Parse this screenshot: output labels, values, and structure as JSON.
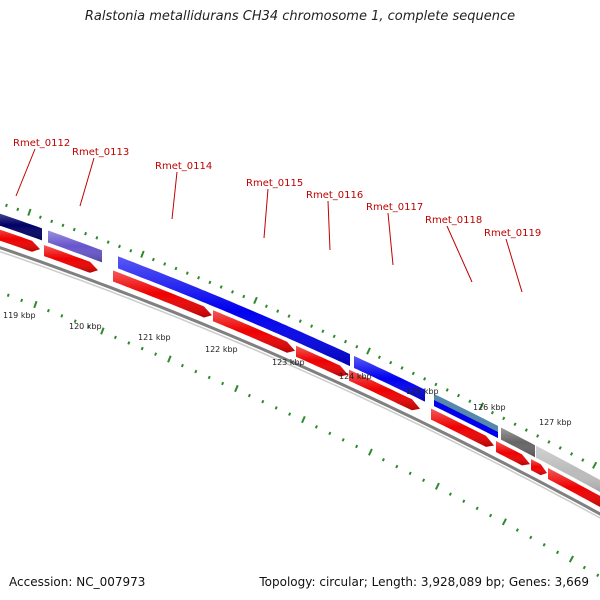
{
  "header": {
    "title": "Ralstonia metallidurans CH34 chromosome 1, complete sequence"
  },
  "footer": {
    "accession": "Accession: NC_007973",
    "summary": "Topology: circular; Length: 3,928,089 bp; Genes: 3,669"
  },
  "colors": {
    "cds_strand": "#ee0000",
    "backbone": "#808080",
    "tick": "#2d8a2d",
    "label": "#c00000"
  },
  "genes": [
    {
      "name": "",
      "color": "#000066"
    },
    {
      "name": "Rmet_0112",
      "color": "#6655cc"
    },
    {
      "name": "Rmet_0113",
      "color": "#6655cc"
    },
    {
      "name": "Rmet_0114",
      "color": "#0000ee"
    },
    {
      "name": "Rmet_0115",
      "color": "#0000ee"
    },
    {
      "name": "Rmet_0116",
      "color": "#0000ee"
    },
    {
      "name": "Rmet_0117",
      "color": "#0000ee"
    },
    {
      "name": "Rmet_0118",
      "color": "#5588aa"
    },
    {
      "name": "Rmet_0119",
      "color": "#666666"
    },
    {
      "name": "",
      "color": "#bbbbbb"
    }
  ],
  "scale_labels": [
    "119 kbp",
    "120 kbp",
    "121 kbp",
    "122 kbp",
    "123 kbp",
    "124 kbp",
    "125 kbp",
    "126 kbp",
    "127 kbp"
  ]
}
